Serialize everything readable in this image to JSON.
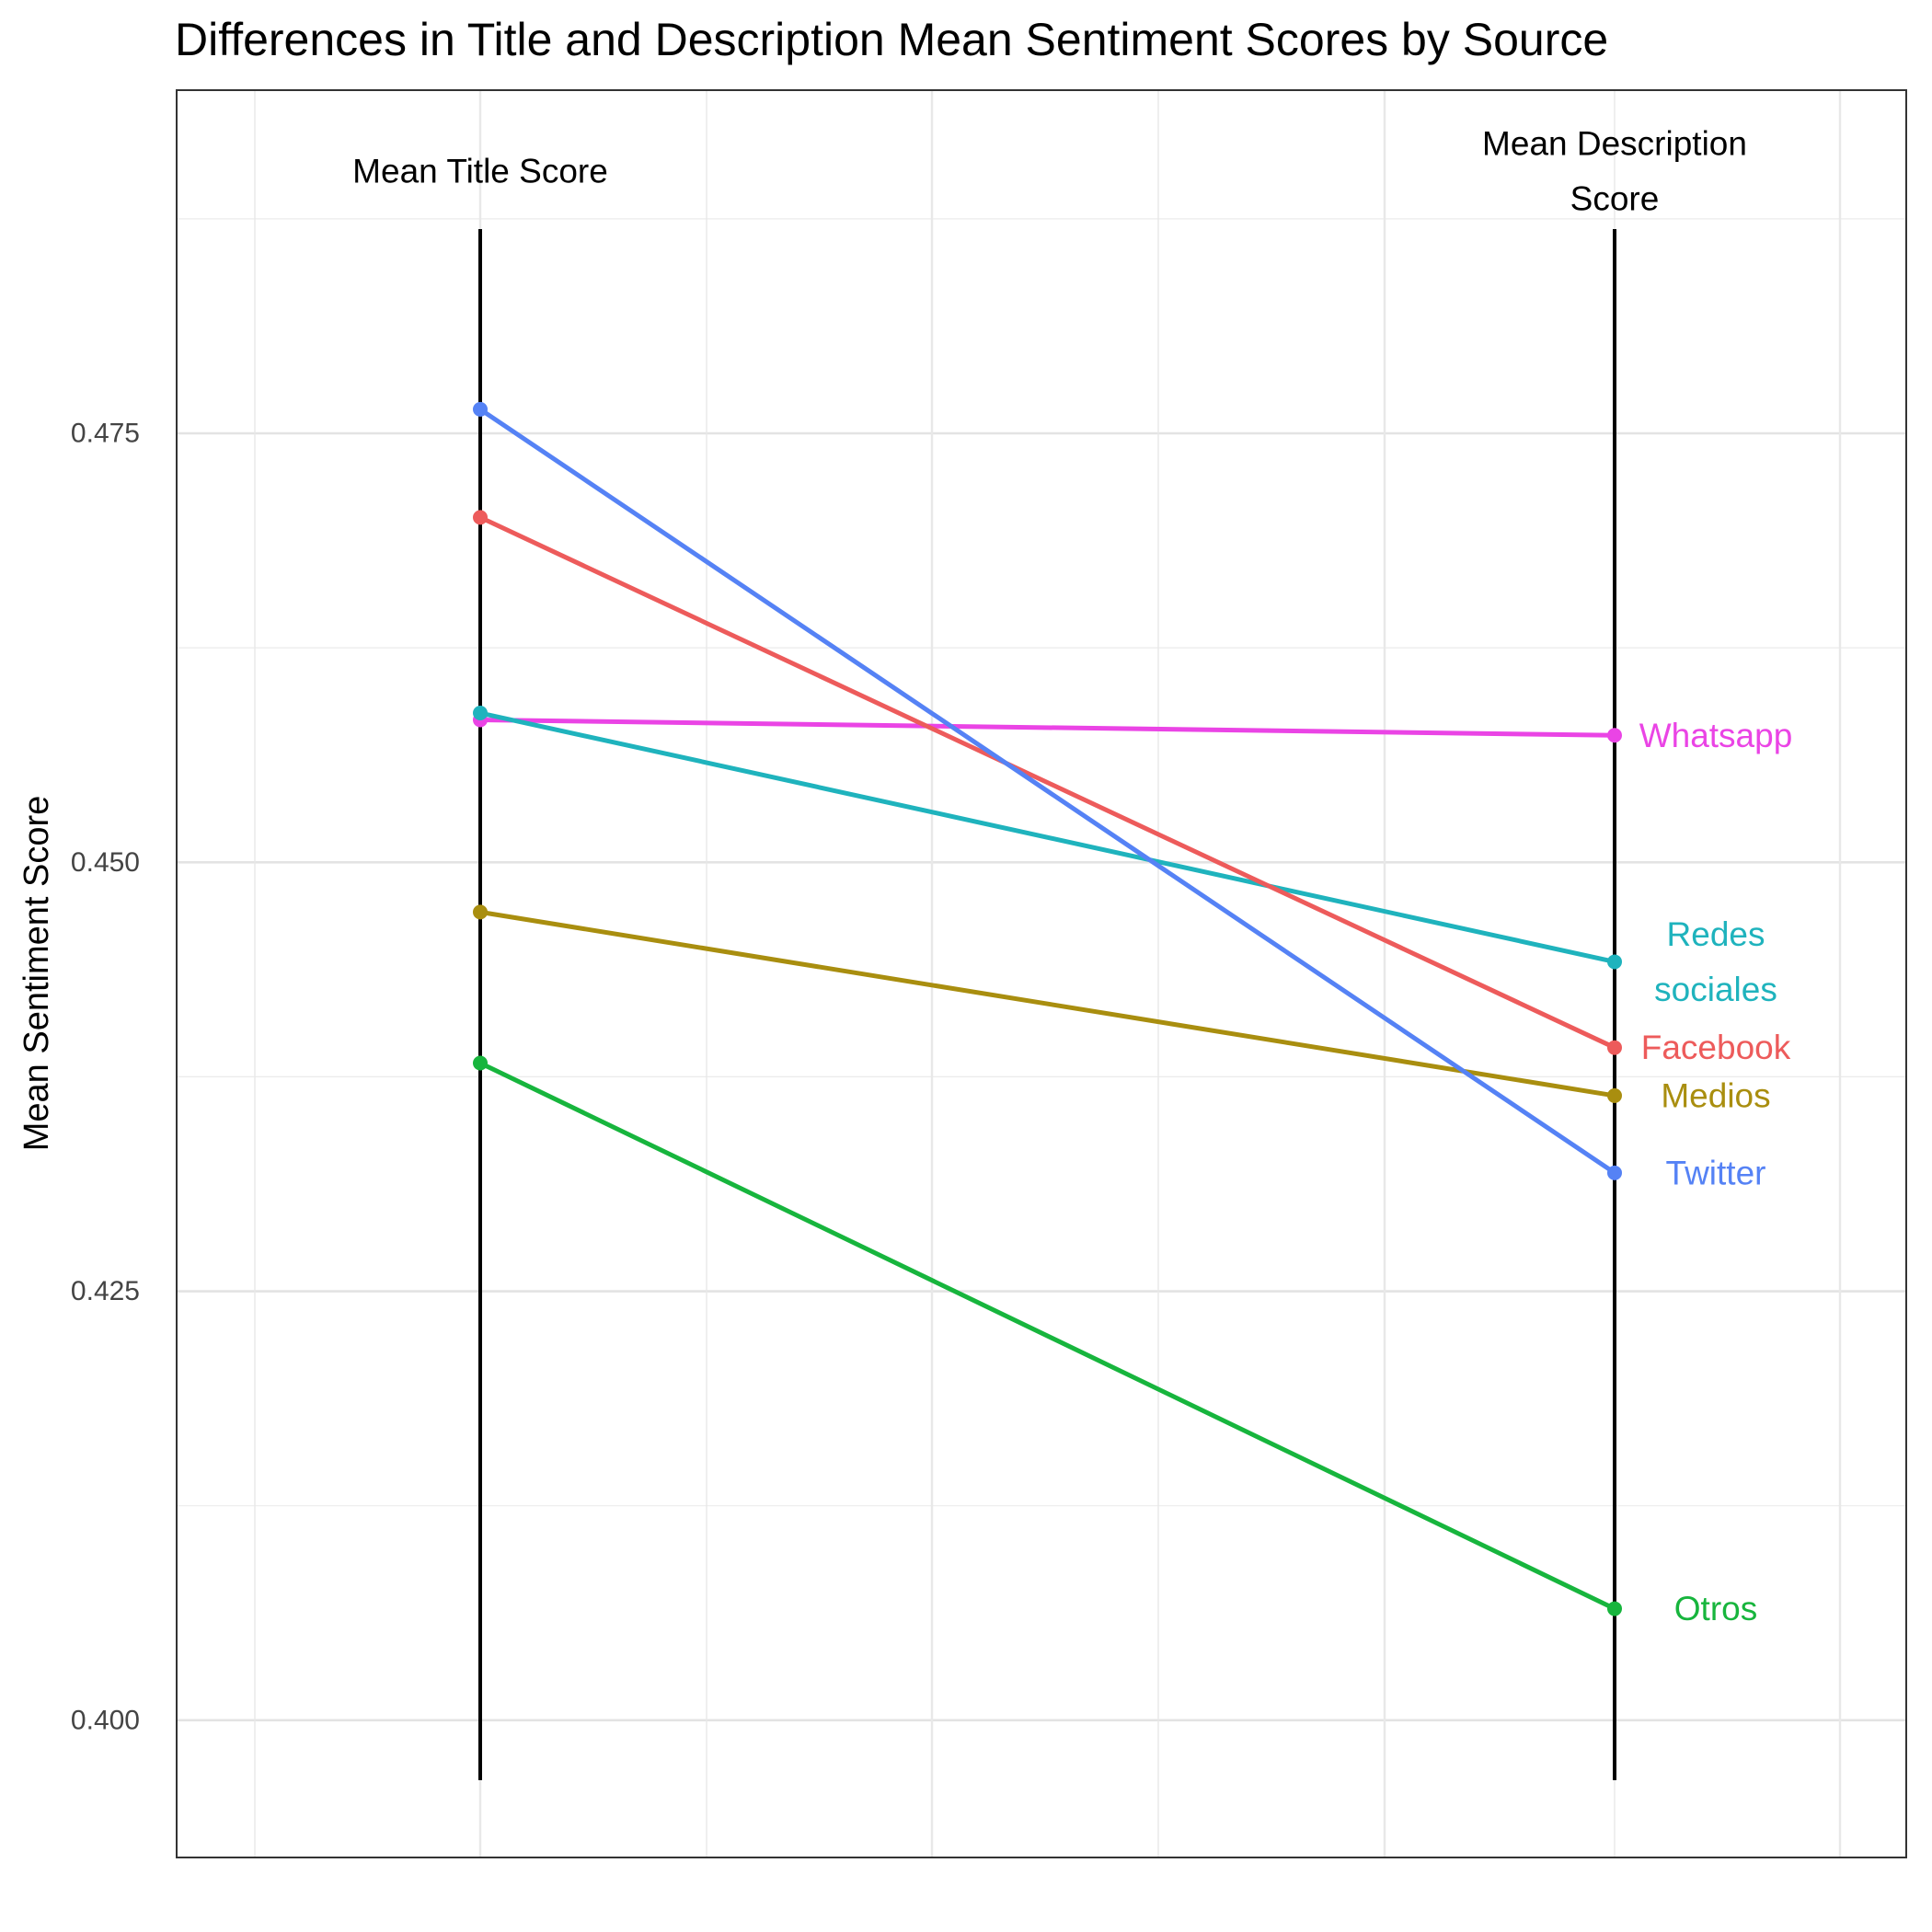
{
  "chart_data": {
    "type": "line",
    "title": "Differences in Title and Description Mean Sentiment Scores by Source",
    "xlabel": "",
    "ylabel": "Mean Sentiment Score",
    "ylim": [
      0.392,
      0.495
    ],
    "y_ticks": [
      "0.400",
      "0.425",
      "0.450",
      "0.475"
    ],
    "y_tick_values": [
      0.4,
      0.425,
      0.45,
      0.475
    ],
    "grid": true,
    "x": [
      "Mean Title Score",
      "Mean Description Score"
    ],
    "column_headers": {
      "title": [
        "Mean Title Score"
      ],
      "description": [
        "Mean Description",
        "Score"
      ]
    },
    "series": [
      {
        "name": "Whatsapp",
        "label_lines": [
          "Whatsapp"
        ],
        "color": "#ea44e5",
        "values": [
          0.4583,
          0.4574
        ]
      },
      {
        "name": "Redes sociales",
        "label_lines": [
          "Redes",
          "sociales"
        ],
        "color": "#1fb3bd",
        "values": [
          0.4587,
          0.4442
        ]
      },
      {
        "name": "Facebook",
        "label_lines": [
          "Facebook"
        ],
        "color": "#ed5b5b",
        "values": [
          0.4701,
          0.4392
        ]
      },
      {
        "name": "Medios",
        "label_lines": [
          "Medios"
        ],
        "color": "#a98e0f",
        "values": [
          0.4471,
          0.4364
        ]
      },
      {
        "name": "Twitter",
        "label_lines": [
          "Twitter"
        ],
        "color": "#5582f5",
        "values": [
          0.4764,
          0.4319
        ]
      },
      {
        "name": "Otros",
        "label_lines": [
          "Otros"
        ],
        "color": "#17b53d",
        "values": [
          0.4383,
          0.4065
        ]
      }
    ]
  }
}
